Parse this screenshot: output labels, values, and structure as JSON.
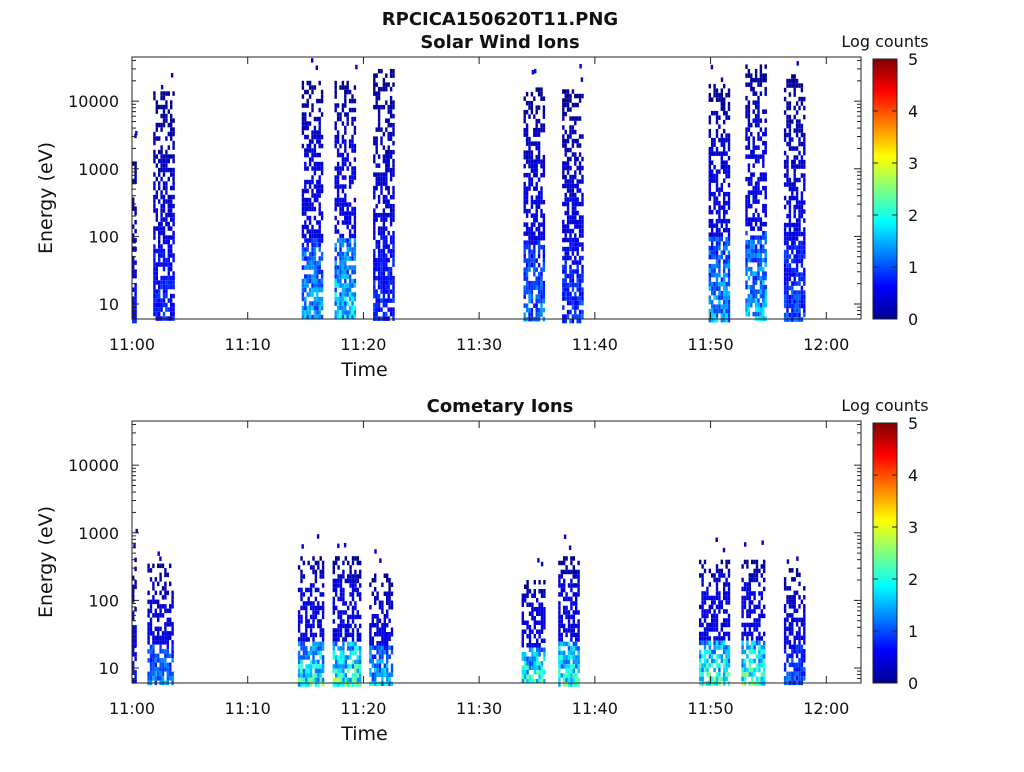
{
  "figure_title": "RPCICA150620T11.PNG",
  "colormap": [
    "#00008f",
    "#0000ff",
    "#0080ff",
    "#00ffff",
    "#80ff80",
    "#ffff00",
    "#ff8000",
    "#ff0000",
    "#800000"
  ],
  "chart_data": [
    {
      "type": "heatmap",
      "title": "Solar Wind Ions",
      "xlabel": "Time",
      "ylabel": "Energy (eV)",
      "yscale": "log",
      "ylim": [
        6,
        45000
      ],
      "xlim": [
        "11:00",
        "12:03"
      ],
      "xticks": [
        "11:00",
        "11:10",
        "11:20",
        "11:30",
        "11:40",
        "11:50",
        "12:00"
      ],
      "yticks": [
        "10",
        "100",
        "1000",
        "10000"
      ],
      "colorbar": {
        "label": "Log counts",
        "range": [
          0,
          5
        ],
        "ticks": [
          "0",
          "1",
          "2",
          "3",
          "4",
          "5"
        ]
      },
      "bursts": [
        {
          "start": "11:00:00",
          "end": "11:00:20",
          "max_energy": 1500,
          "peak_log_counts": 0.8
        },
        {
          "start": "11:01:50",
          "end": "11:03:30",
          "max_energy": 14000,
          "peak_log_counts": 1.0
        },
        {
          "start": "11:14:40",
          "end": "11:16:20",
          "max_energy": 20000,
          "peak_log_counts": 1.7
        },
        {
          "start": "11:17:30",
          "end": "11:19:20",
          "max_energy": 20000,
          "peak_log_counts": 2.0
        },
        {
          "start": "11:20:50",
          "end": "11:22:40",
          "max_energy": 30000,
          "peak_log_counts": 1.0
        },
        {
          "start": "11:33:50",
          "end": "11:35:30",
          "max_energy": 16000,
          "peak_log_counts": 1.4
        },
        {
          "start": "11:37:10",
          "end": "11:39:00",
          "max_energy": 15000,
          "peak_log_counts": 1.1
        },
        {
          "start": "11:49:50",
          "end": "11:51:30",
          "max_energy": 18000,
          "peak_log_counts": 1.7
        },
        {
          "start": "11:53:00",
          "end": "11:54:50",
          "max_energy": 35000,
          "peak_log_counts": 1.8
        },
        {
          "start": "11:56:20",
          "end": "11:58:10",
          "max_energy": 25000,
          "peak_log_counts": 1.2
        }
      ]
    },
    {
      "type": "heatmap",
      "title": "Cometary Ions",
      "xlabel": "Time",
      "ylabel": "Energy (eV)",
      "yscale": "log",
      "ylim": [
        6,
        45000
      ],
      "xlim": [
        "11:00",
        "12:03"
      ],
      "xticks": [
        "11:00",
        "11:10",
        "11:20",
        "11:30",
        "11:40",
        "11:50",
        "12:00"
      ],
      "yticks": [
        "10",
        "100",
        "1000",
        "10000"
      ],
      "colorbar": {
        "label": "Log counts",
        "range": [
          0,
          5
        ],
        "ticks": [
          "0",
          "1",
          "2",
          "3",
          "4",
          "5"
        ]
      },
      "bursts": [
        {
          "start": "11:00:00",
          "end": "11:00:20",
          "max_energy": 500,
          "peak_log_counts": 0.8
        },
        {
          "start": "11:01:20",
          "end": "11:03:30",
          "max_energy": 350,
          "peak_log_counts": 1.5
        },
        {
          "start": "11:14:20",
          "end": "11:16:30",
          "max_energy": 450,
          "peak_log_counts": 2.4
        },
        {
          "start": "11:17:20",
          "end": "11:19:40",
          "max_energy": 450,
          "peak_log_counts": 2.6
        },
        {
          "start": "11:20:30",
          "end": "11:22:30",
          "max_energy": 250,
          "peak_log_counts": 1.9
        },
        {
          "start": "11:33:40",
          "end": "11:35:40",
          "max_energy": 200,
          "peak_log_counts": 2.5
        },
        {
          "start": "11:36:50",
          "end": "11:38:30",
          "max_energy": 450,
          "peak_log_counts": 2.5
        },
        {
          "start": "11:49:00",
          "end": "11:51:30",
          "max_energy": 400,
          "peak_log_counts": 2.6
        },
        {
          "start": "11:52:40",
          "end": "11:54:40",
          "max_energy": 400,
          "peak_log_counts": 2.7
        },
        {
          "start": "11:56:20",
          "end": "11:58:00",
          "max_energy": 300,
          "peak_log_counts": 1.3
        }
      ]
    }
  ]
}
